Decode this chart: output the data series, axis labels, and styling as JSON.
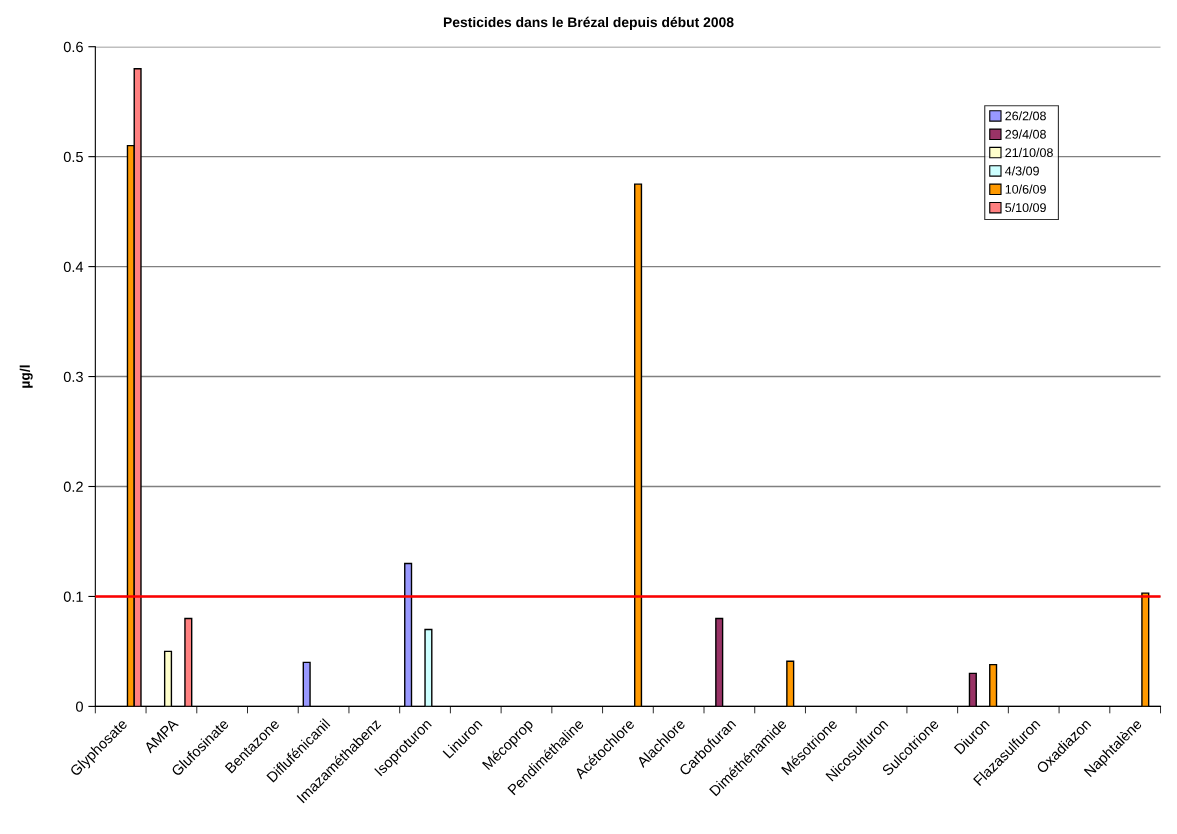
{
  "chart_data": {
    "type": "bar",
    "title": "Pesticides dans le Brézal depuis début 2008",
    "ylabel": "µg/l",
    "categories": [
      "Glyphosate",
      "AMPA",
      "Glufosinate",
      "Bentazone",
      "Diflufénicanil",
      "Imazaméthabenz",
      "Isoproturon",
      "Linuron",
      "Mécoprop",
      "Pendiméthaline",
      "Acétochlore",
      "Alachlore",
      "Carbofuran",
      "Diméthénamide",
      "Mésotrione",
      "Nicosulfuron",
      "Sulcotrione",
      "Diuron",
      "Flazasulfuron",
      "Oxadiazon",
      "Naphtalène"
    ],
    "series": [
      {
        "name": "26/2/08",
        "color": "#9999ff",
        "values": [
          null,
          null,
          null,
          null,
          0.04,
          null,
          0.13,
          null,
          null,
          null,
          null,
          null,
          null,
          null,
          null,
          null,
          null,
          null,
          null,
          null,
          null
        ]
      },
      {
        "name": "29/4/08",
        "color": "#993366",
        "values": [
          null,
          null,
          null,
          null,
          null,
          null,
          null,
          null,
          null,
          null,
          null,
          null,
          0.08,
          null,
          null,
          null,
          null,
          0.03,
          null,
          null,
          null
        ]
      },
      {
        "name": "21/10/08",
        "color": "#ffffcc",
        "values": [
          null,
          0.05,
          null,
          null,
          null,
          null,
          null,
          null,
          null,
          null,
          null,
          null,
          null,
          null,
          null,
          null,
          null,
          null,
          null,
          null,
          null
        ]
      },
      {
        "name": "4/3/09",
        "color": "#ccffff",
        "values": [
          null,
          null,
          null,
          null,
          null,
          null,
          0.07,
          null,
          null,
          null,
          null,
          null,
          null,
          null,
          null,
          null,
          null,
          null,
          null,
          null,
          null
        ]
      },
      {
        "name": "10/6/09",
        "color": "#ff9900",
        "values": [
          0.51,
          null,
          null,
          null,
          null,
          null,
          null,
          null,
          null,
          null,
          0.475,
          null,
          null,
          0.041,
          null,
          null,
          null,
          0.038,
          null,
          null,
          0.103
        ]
      },
      {
        "name": "5/10/09",
        "color": "#ff8080",
        "values": [
          0.58,
          0.08,
          null,
          null,
          null,
          null,
          null,
          null,
          null,
          null,
          null,
          null,
          null,
          null,
          null,
          null,
          null,
          null,
          null,
          null,
          null
        ]
      }
    ],
    "ylim": [
      0,
      0.6
    ],
    "yticks": [
      0,
      0.1,
      0.2,
      0.3,
      0.4,
      0.5,
      0.6
    ],
    "grid": "y",
    "legend": "top right",
    "ref_lines": [
      {
        "axis": "y",
        "value": 0.1,
        "color": "#ff0000"
      }
    ]
  }
}
